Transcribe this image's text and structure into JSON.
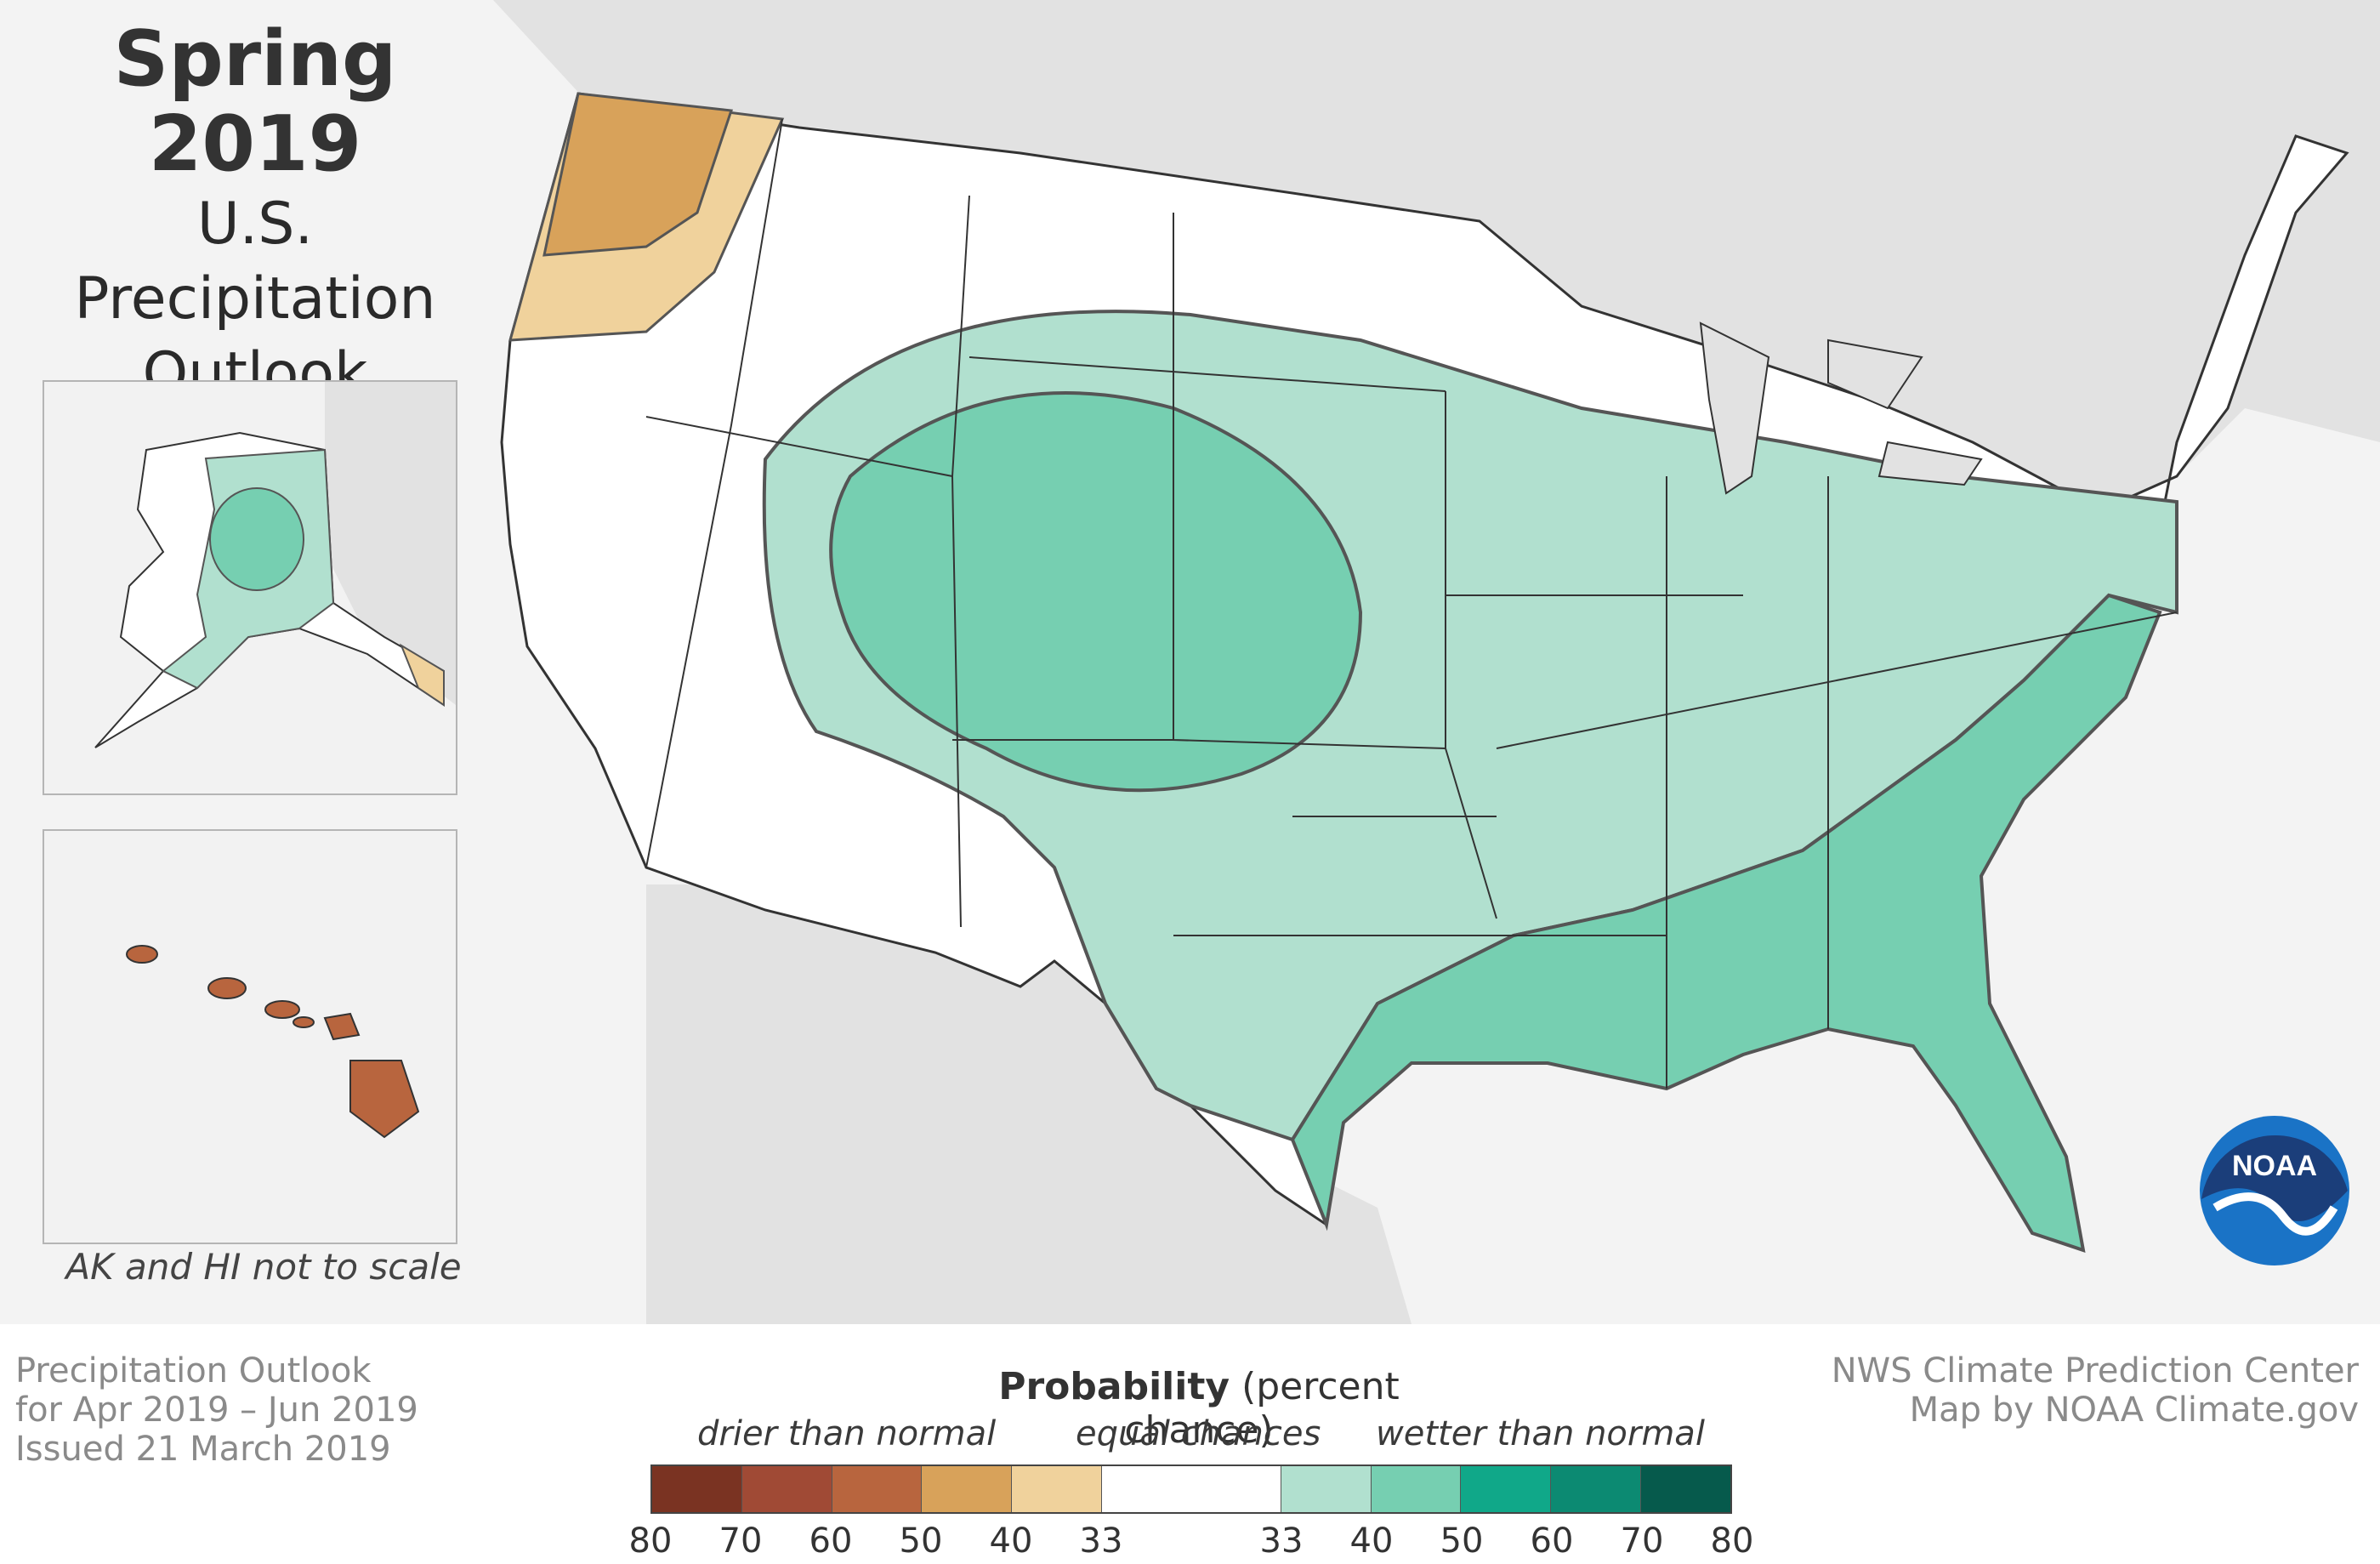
{
  "title": {
    "main": "Spring 2019",
    "line1": "U.S.",
    "line2": "Precipitation",
    "line3": "Outlook"
  },
  "inset_note": "AK and HI not to scale",
  "footer": {
    "left_line1": "Precipitation Outlook",
    "left_line2": "for Apr 2019 – Jun 2019",
    "left_line3": "Issued 21 March 2019",
    "right_line1": "NWS Climate Prediction Center",
    "right_line2": "Map by NOAA Climate.gov"
  },
  "legend": {
    "title_bold": "Probability",
    "title_rest": "(percent chance)",
    "drier": "drier than normal",
    "equal": "equal chances",
    "wetter": "wetter than normal",
    "ticks": [
      "80",
      "70",
      "60",
      "50",
      "40",
      "33",
      "33",
      "40",
      "50",
      "60",
      "70",
      "80"
    ],
    "colors": {
      "drier_80": "#7a3322",
      "drier_70": "#a04a35",
      "drier_60": "#b8653e",
      "drier_50": "#d8a25a",
      "drier_40": "#f0d29c",
      "equal": "#ffffff",
      "wetter_40": "#b1e0cf",
      "wetter_50": "#76cfb1",
      "wetter_60": "#10a889",
      "wetter_70": "#0c8a72",
      "wetter_80": "#065a4c"
    }
  },
  "map_colors": {
    "ocean_land_background": "#e2e2e2",
    "page_background": "#f3f3f3",
    "state_borders": "#333333",
    "contour_lines": "#555555"
  },
  "logo": {
    "text": "NOAA",
    "outer_color": "#1a73c6",
    "inner_color": "#1b3e7a"
  }
}
